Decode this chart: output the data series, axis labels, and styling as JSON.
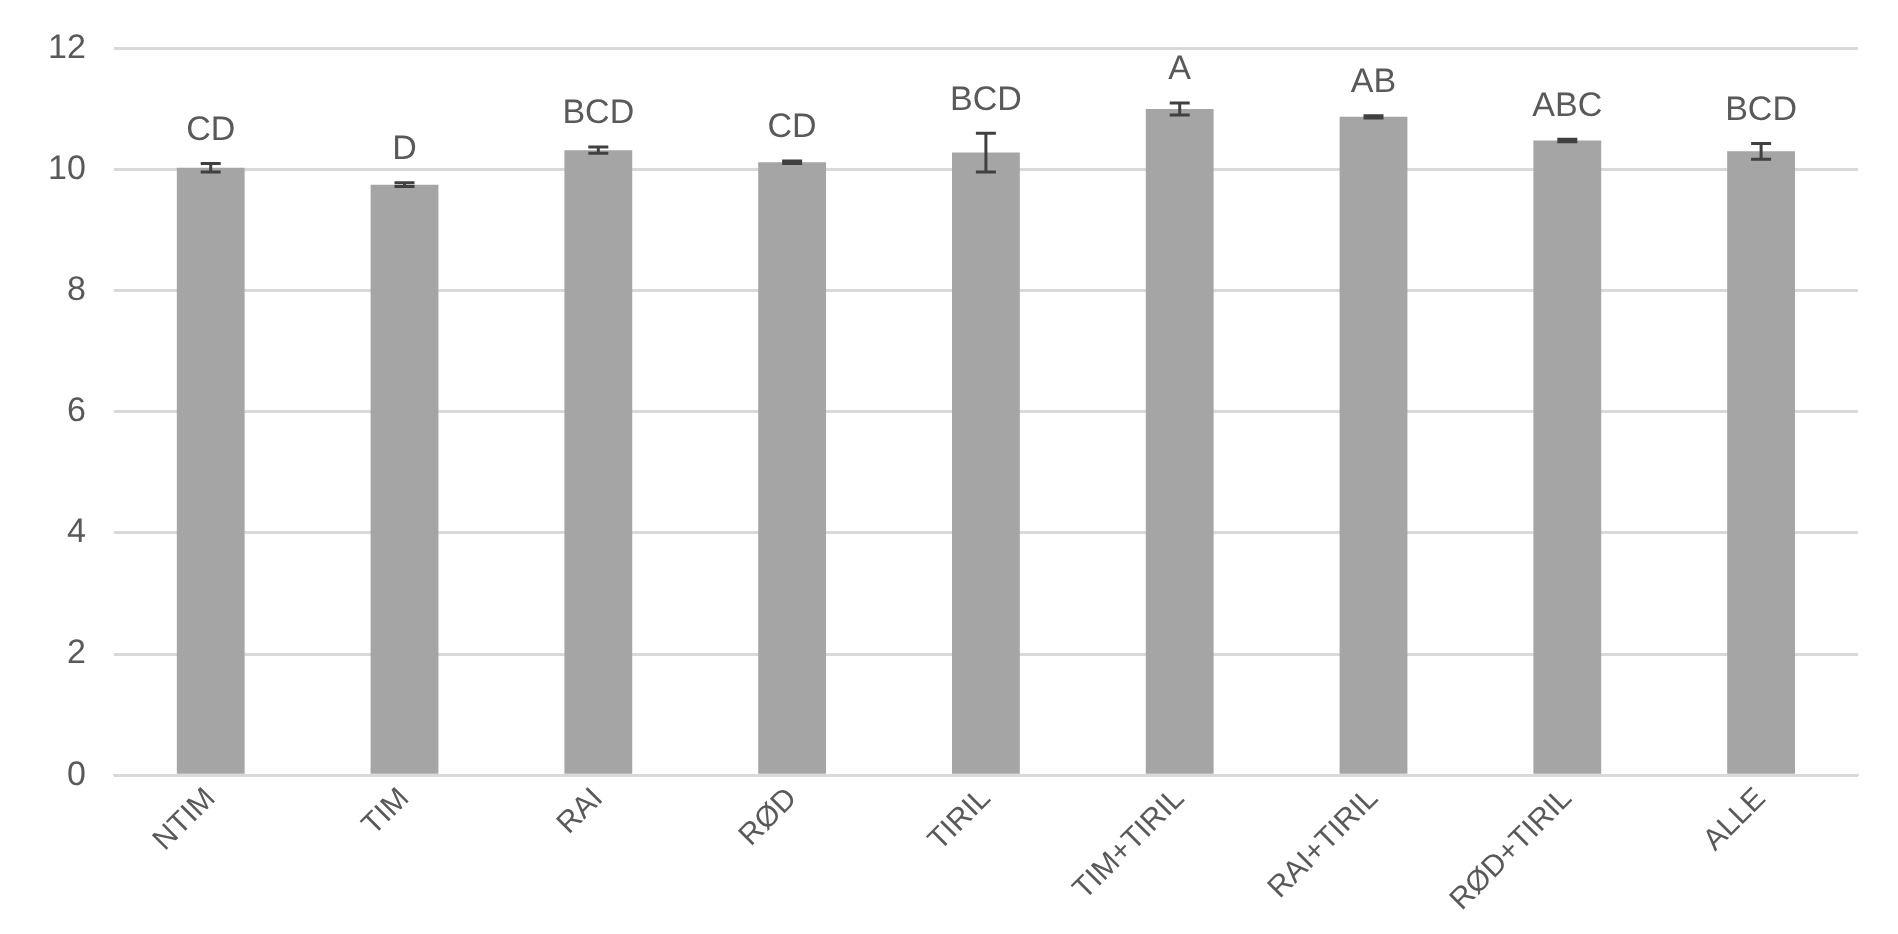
{
  "chart_data": {
    "type": "bar",
    "categories": [
      "NTIM",
      "TIM",
      "RAI",
      "RØD",
      "TIRIL",
      "TIM+TIRIL",
      "RAI+TIRIL",
      "RØD+TIRIL",
      "ALLE"
    ],
    "values": [
      10.03,
      9.75,
      10.32,
      10.12,
      10.28,
      11.0,
      10.87,
      10.48,
      10.3
    ],
    "errors": [
      0.07,
      0.03,
      0.05,
      0.02,
      0.32,
      0.1,
      0.02,
      0.02,
      0.13
    ],
    "color": "#a5a5a5",
    "ylim": [
      0,
      12
    ],
    "yticks": [
      0,
      2,
      4,
      6,
      8,
      10,
      12
    ],
    "grid": "y",
    "legend": false,
    "annotations": [
      {
        "text": "CD",
        "x": "NTIM",
        "y": 10.03
      },
      {
        "text": "D",
        "x": "TIM",
        "y": 9.75
      },
      {
        "text": "BCD",
        "x": "RAI",
        "y": 10.32
      },
      {
        "text": "CD",
        "x": "RØD",
        "y": 10.12
      },
      {
        "text": "BCD",
        "x": "TIRIL",
        "y": 10.28
      },
      {
        "text": "A",
        "x": "TIM+TIRIL",
        "y": 11.0
      },
      {
        "text": "AB",
        "x": "RAI+TIRIL",
        "y": 10.87
      },
      {
        "text": "ABC",
        "x": "RØD+TIRIL",
        "y": 10.48
      },
      {
        "text": "BCD",
        "x": "ALLE",
        "y": 10.3
      }
    ]
  }
}
